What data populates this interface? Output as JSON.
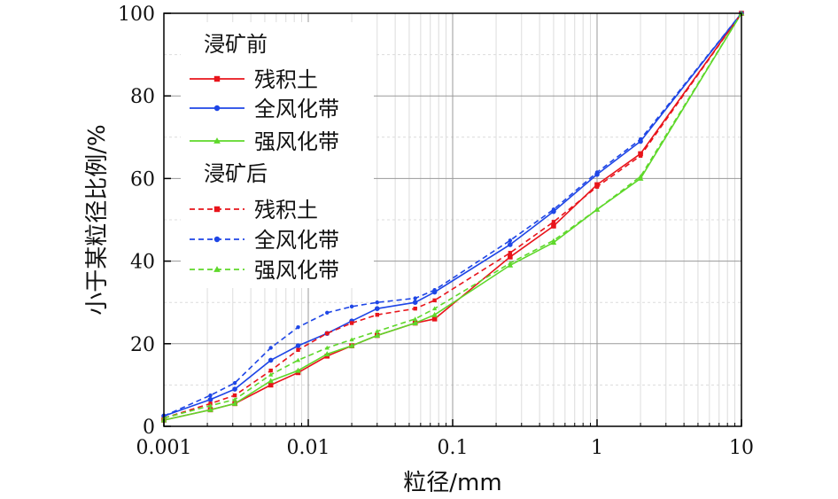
{
  "chart_data": {
    "type": "line",
    "xlabel": "粒径/mm",
    "ylabel": "小于某粒径比例/%",
    "x_scale": "log",
    "xlim": [
      0.001,
      10
    ],
    "ylim": [
      0,
      100
    ],
    "xticks": [
      "0.001",
      "0.01",
      "0.1",
      "1",
      "10"
    ],
    "yticks": [
      "0",
      "20",
      "40",
      "60",
      "80",
      "100"
    ],
    "grid": true,
    "legend_position": "top-left",
    "legend_groups": [
      {
        "title": "浸矿前",
        "series_indices": [
          0,
          1,
          2
        ]
      },
      {
        "title": "浸矿后",
        "series_indices": [
          3,
          4,
          5
        ]
      }
    ],
    "series": [
      {
        "name": "残积土",
        "group": "浸矿前",
        "color": "#e8141b",
        "marker": "square",
        "dash": false,
        "points": [
          [
            0.001,
            1.5
          ],
          [
            0.0021,
            4.0
          ],
          [
            0.0031,
            5.5
          ],
          [
            0.0055,
            10.0
          ],
          [
            0.0085,
            13.0
          ],
          [
            0.0135,
            17.0
          ],
          [
            0.02,
            19.5
          ],
          [
            0.03,
            22.0
          ],
          [
            0.055,
            25.0
          ],
          [
            0.075,
            26.0
          ],
          [
            0.25,
            41.0
          ],
          [
            0.5,
            48.5
          ],
          [
            1,
            58.5
          ],
          [
            2,
            66.0
          ],
          [
            10,
            100
          ]
        ]
      },
      {
        "name": "全风化带",
        "group": "浸矿前",
        "color": "#1e46e6",
        "marker": "circle",
        "dash": false,
        "points": [
          [
            0.001,
            2.5
          ],
          [
            0.0021,
            6.5
          ],
          [
            0.0031,
            9.0
          ],
          [
            0.0055,
            16.0
          ],
          [
            0.0085,
            19.5
          ],
          [
            0.0135,
            22.5
          ],
          [
            0.02,
            25.5
          ],
          [
            0.03,
            28.5
          ],
          [
            0.055,
            30.0
          ],
          [
            0.075,
            32.5
          ],
          [
            0.25,
            44.0
          ],
          [
            0.5,
            52.0
          ],
          [
            1,
            61.0
          ],
          [
            2,
            69.0
          ],
          [
            10,
            100
          ]
        ]
      },
      {
        "name": "强风化带",
        "group": "浸矿前",
        "color": "#5ed82a",
        "marker": "triangle",
        "dash": false,
        "points": [
          [
            0.001,
            1.5
          ],
          [
            0.0021,
            4.0
          ],
          [
            0.0031,
            5.5
          ],
          [
            0.0055,
            11.0
          ],
          [
            0.0085,
            13.5
          ],
          [
            0.0135,
            17.5
          ],
          [
            0.02,
            19.5
          ],
          [
            0.03,
            22.0
          ],
          [
            0.055,
            25.0
          ],
          [
            0.075,
            27.0
          ],
          [
            0.25,
            39.0
          ],
          [
            0.5,
            44.5
          ],
          [
            1,
            52.5
          ],
          [
            2,
            60.0
          ],
          [
            10,
            100
          ]
        ]
      },
      {
        "name": "残积土",
        "group": "浸矿后",
        "color": "#e8141b",
        "marker": "square",
        "dash": true,
        "points": [
          [
            0.001,
            2.0
          ],
          [
            0.0021,
            5.5
          ],
          [
            0.0031,
            7.5
          ],
          [
            0.0055,
            13.5
          ],
          [
            0.0085,
            18.5
          ],
          [
            0.0135,
            22.5
          ],
          [
            0.02,
            25.0
          ],
          [
            0.03,
            27.0
          ],
          [
            0.055,
            28.5
          ],
          [
            0.075,
            30.5
          ],
          [
            0.25,
            42.0
          ],
          [
            0.5,
            49.5
          ],
          [
            1,
            58.0
          ],
          [
            2,
            65.5
          ],
          [
            10,
            100
          ]
        ]
      },
      {
        "name": "全风化带",
        "group": "浸矿后",
        "color": "#1e46e6",
        "marker": "circle",
        "dash": true,
        "points": [
          [
            0.001,
            2.5
          ],
          [
            0.0021,
            7.5
          ],
          [
            0.0031,
            10.5
          ],
          [
            0.0055,
            19.0
          ],
          [
            0.0085,
            24.0
          ],
          [
            0.0135,
            27.5
          ],
          [
            0.02,
            29.0
          ],
          [
            0.03,
            30.0
          ],
          [
            0.055,
            31.0
          ],
          [
            0.075,
            33.0
          ],
          [
            0.25,
            45.0
          ],
          [
            0.5,
            52.5
          ],
          [
            1,
            61.5
          ],
          [
            2,
            69.5
          ],
          [
            10,
            100
          ]
        ]
      },
      {
        "name": "强风化带",
        "group": "浸矿后",
        "color": "#5ed82a",
        "marker": "triangle",
        "dash": true,
        "points": [
          [
            0.001,
            2.0
          ],
          [
            0.0021,
            5.0
          ],
          [
            0.0031,
            6.5
          ],
          [
            0.0055,
            12.5
          ],
          [
            0.0085,
            16.0
          ],
          [
            0.0135,
            19.0
          ],
          [
            0.02,
            21.0
          ],
          [
            0.03,
            23.0
          ],
          [
            0.055,
            26.0
          ],
          [
            0.075,
            28.5
          ],
          [
            0.25,
            39.5
          ],
          [
            0.5,
            45.0
          ],
          [
            1,
            52.5
          ],
          [
            2,
            60.5
          ],
          [
            10,
            100
          ]
        ]
      }
    ]
  }
}
